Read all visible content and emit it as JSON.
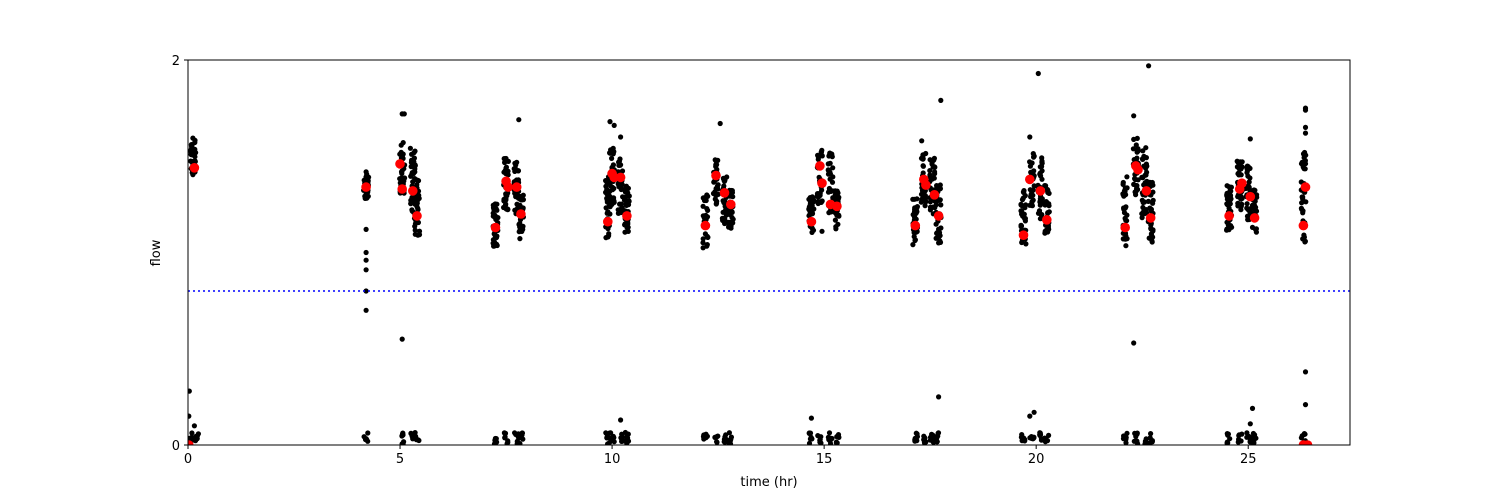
{
  "chart_data": {
    "type": "scatter",
    "xlabel": "time (hr)",
    "ylabel": "flow",
    "xlim": [
      0,
      27.4
    ],
    "ylim": [
      0,
      2
    ],
    "xticks": [
      "0",
      "5",
      "10",
      "15",
      "20",
      "25"
    ],
    "xtick_values": [
      0,
      5,
      10,
      15,
      20,
      25
    ],
    "yticks": [
      "0",
      "2"
    ],
    "ytick_values": [
      0,
      2
    ],
    "grid": false,
    "colors": {
      "samples": "#000000",
      "means": "#ff0000",
      "threshold": "#0000ff"
    },
    "threshold": {
      "y": 0.8,
      "style": "dotted"
    },
    "clusters": [
      {
        "x": 0.12,
        "ylow": 1.38,
        "yhigh": 1.6
      },
      {
        "x": 4.2,
        "ylow": 1.28,
        "yhigh": 1.42
      },
      {
        "x": 5.05,
        "ylow": 1.28,
        "yhigh": 1.58
      },
      {
        "x": 5.3,
        "ylow": 1.2,
        "yhigh": 1.55
      },
      {
        "x": 5.4,
        "ylow": 1.08,
        "yhigh": 1.38
      },
      {
        "x": 7.25,
        "ylow": 1.03,
        "yhigh": 1.27
      },
      {
        "x": 7.5,
        "ylow": 1.18,
        "yhigh": 1.5
      },
      {
        "x": 7.75,
        "ylow": 1.2,
        "yhigh": 1.48
      },
      {
        "x": 7.85,
        "ylow": 1.07,
        "yhigh": 1.3
      },
      {
        "x": 9.9,
        "ylow": 1.05,
        "yhigh": 1.4
      },
      {
        "x": 10.0,
        "ylow": 1.25,
        "yhigh": 1.55
      },
      {
        "x": 10.2,
        "ylow": 1.2,
        "yhigh": 1.5
      },
      {
        "x": 10.35,
        "ylow": 1.1,
        "yhigh": 1.35
      },
      {
        "x": 12.2,
        "ylow": 1.02,
        "yhigh": 1.3
      },
      {
        "x": 12.45,
        "ylow": 1.25,
        "yhigh": 1.5
      },
      {
        "x": 12.65,
        "ylow": 1.15,
        "yhigh": 1.4
      },
      {
        "x": 12.8,
        "ylow": 1.12,
        "yhigh": 1.33
      },
      {
        "x": 14.7,
        "ylow": 1.1,
        "yhigh": 1.3
      },
      {
        "x": 14.9,
        "ylow": 1.25,
        "yhigh": 1.55
      },
      {
        "x": 15.15,
        "ylow": 1.18,
        "yhigh": 1.52
      },
      {
        "x": 15.3,
        "ylow": 1.12,
        "yhigh": 1.32
      },
      {
        "x": 17.15,
        "ylow": 1.04,
        "yhigh": 1.28
      },
      {
        "x": 17.35,
        "ylow": 1.23,
        "yhigh": 1.52
      },
      {
        "x": 17.55,
        "ylow": 1.18,
        "yhigh": 1.5
      },
      {
        "x": 17.7,
        "ylow": 1.04,
        "yhigh": 1.36
      },
      {
        "x": 19.7,
        "ylow": 1.03,
        "yhigh": 1.33
      },
      {
        "x": 19.9,
        "ylow": 1.24,
        "yhigh": 1.52
      },
      {
        "x": 20.1,
        "ylow": 1.17,
        "yhigh": 1.5
      },
      {
        "x": 20.25,
        "ylow": 1.1,
        "yhigh": 1.35
      },
      {
        "x": 22.1,
        "ylow": 1.03,
        "yhigh": 1.4
      },
      {
        "x": 22.35,
        "ylow": 1.3,
        "yhigh": 1.6
      },
      {
        "x": 22.55,
        "ylow": 1.18,
        "yhigh": 1.55
      },
      {
        "x": 22.7,
        "ylow": 1.05,
        "yhigh": 1.38
      },
      {
        "x": 24.55,
        "ylow": 1.1,
        "yhigh": 1.35
      },
      {
        "x": 24.8,
        "ylow": 1.22,
        "yhigh": 1.48
      },
      {
        "x": 25.0,
        "ylow": 1.15,
        "yhigh": 1.45
      },
      {
        "x": 25.15,
        "ylow": 1.1,
        "yhigh": 1.33
      },
      {
        "x": 26.3,
        "ylow": 1.04,
        "yhigh": 1.53
      }
    ],
    "low_clusters": [
      0.05,
      0.2,
      4.2,
      5.05,
      5.3,
      5.4,
      7.25,
      7.5,
      7.75,
      7.85,
      9.9,
      10.0,
      10.2,
      10.35,
      12.2,
      12.45,
      12.65,
      12.8,
      14.7,
      14.9,
      15.15,
      15.3,
      17.15,
      17.35,
      17.55,
      17.7,
      19.7,
      19.9,
      20.1,
      20.25,
      22.1,
      22.35,
      22.55,
      22.7,
      24.55,
      24.8,
      25.0,
      25.15,
      26.3
    ],
    "outliers": [
      {
        "x": 0.03,
        "y": 0.28
      },
      {
        "x": 0.02,
        "y": 0.15
      },
      {
        "x": 0.15,
        "y": 0.1
      },
      {
        "x": 4.2,
        "y": 1.12
      },
      {
        "x": 4.2,
        "y": 1.0
      },
      {
        "x": 4.2,
        "y": 0.96
      },
      {
        "x": 4.2,
        "y": 0.91
      },
      {
        "x": 4.2,
        "y": 0.8
      },
      {
        "x": 4.2,
        "y": 0.7
      },
      {
        "x": 5.05,
        "y": 1.72
      },
      {
        "x": 5.1,
        "y": 1.72
      },
      {
        "x": 5.05,
        "y": 0.55
      },
      {
        "x": 7.8,
        "y": 1.69
      },
      {
        "x": 9.95,
        "y": 1.68
      },
      {
        "x": 10.05,
        "y": 1.66
      },
      {
        "x": 10.2,
        "y": 1.6
      },
      {
        "x": 12.55,
        "y": 1.67
      },
      {
        "x": 10.2,
        "y": 0.13
      },
      {
        "x": 14.7,
        "y": 0.14
      },
      {
        "x": 14.95,
        "y": 1.11
      },
      {
        "x": 17.75,
        "y": 1.79
      },
      {
        "x": 17.3,
        "y": 1.58
      },
      {
        "x": 17.7,
        "y": 0.25
      },
      {
        "x": 19.85,
        "y": 0.15
      },
      {
        "x": 19.95,
        "y": 0.17
      },
      {
        "x": 20.05,
        "y": 1.93
      },
      {
        "x": 19.85,
        "y": 1.6
      },
      {
        "x": 22.3,
        "y": 1.71
      },
      {
        "x": 22.3,
        "y": 0.53
      },
      {
        "x": 22.65,
        "y": 1.97
      },
      {
        "x": 25.05,
        "y": 1.59
      },
      {
        "x": 25.05,
        "y": 0.11
      },
      {
        "x": 25.1,
        "y": 0.19
      },
      {
        "x": 26.35,
        "y": 1.75
      },
      {
        "x": 26.35,
        "y": 1.74
      },
      {
        "x": 26.35,
        "y": 1.65
      },
      {
        "x": 26.35,
        "y": 1.62
      },
      {
        "x": 26.35,
        "y": 0.38
      },
      {
        "x": 26.35,
        "y": 0.21
      }
    ],
    "means": [
      {
        "x": 0.15,
        "y": 1.44
      },
      {
        "x": 4.2,
        "y": 1.34
      },
      {
        "x": 5.0,
        "y": 1.46
      },
      {
        "x": 5.05,
        "y": 1.33
      },
      {
        "x": 5.3,
        "y": 1.32
      },
      {
        "x": 5.4,
        "y": 1.19
      },
      {
        "x": 7.25,
        "y": 1.13
      },
      {
        "x": 7.5,
        "y": 1.37
      },
      {
        "x": 7.55,
        "y": 1.34
      },
      {
        "x": 7.75,
        "y": 1.34
      },
      {
        "x": 7.85,
        "y": 1.2
      },
      {
        "x": 9.9,
        "y": 1.16
      },
      {
        "x": 10.0,
        "y": 1.41
      },
      {
        "x": 10.05,
        "y": 1.39
      },
      {
        "x": 10.2,
        "y": 1.39
      },
      {
        "x": 10.35,
        "y": 1.19
      },
      {
        "x": 12.2,
        "y": 1.14
      },
      {
        "x": 12.45,
        "y": 1.4
      },
      {
        "x": 12.65,
        "y": 1.31
      },
      {
        "x": 12.8,
        "y": 1.25
      },
      {
        "x": 14.7,
        "y": 1.16
      },
      {
        "x": 14.9,
        "y": 1.45
      },
      {
        "x": 14.95,
        "y": 1.36
      },
      {
        "x": 15.15,
        "y": 1.25
      },
      {
        "x": 15.3,
        "y": 1.24
      },
      {
        "x": 17.15,
        "y": 1.14
      },
      {
        "x": 17.35,
        "y": 1.38
      },
      {
        "x": 17.4,
        "y": 1.35
      },
      {
        "x": 17.6,
        "y": 1.3
      },
      {
        "x": 17.7,
        "y": 1.19
      },
      {
        "x": 19.7,
        "y": 1.09
      },
      {
        "x": 19.85,
        "y": 1.38
      },
      {
        "x": 20.1,
        "y": 1.32
      },
      {
        "x": 20.25,
        "y": 1.17
      },
      {
        "x": 22.1,
        "y": 1.13
      },
      {
        "x": 22.35,
        "y": 1.45
      },
      {
        "x": 22.4,
        "y": 1.43
      },
      {
        "x": 22.6,
        "y": 1.32
      },
      {
        "x": 22.7,
        "y": 1.18
      },
      {
        "x": 24.55,
        "y": 1.19
      },
      {
        "x": 24.8,
        "y": 1.33
      },
      {
        "x": 24.85,
        "y": 1.36
      },
      {
        "x": 25.05,
        "y": 1.29
      },
      {
        "x": 25.15,
        "y": 1.18
      },
      {
        "x": 26.3,
        "y": 1.14
      },
      {
        "x": 26.35,
        "y": 1.34
      },
      {
        "x": 0.02,
        "y": 0.0
      },
      {
        "x": 26.3,
        "y": 0.0
      },
      {
        "x": 26.4,
        "y": 0.0
      }
    ]
  }
}
